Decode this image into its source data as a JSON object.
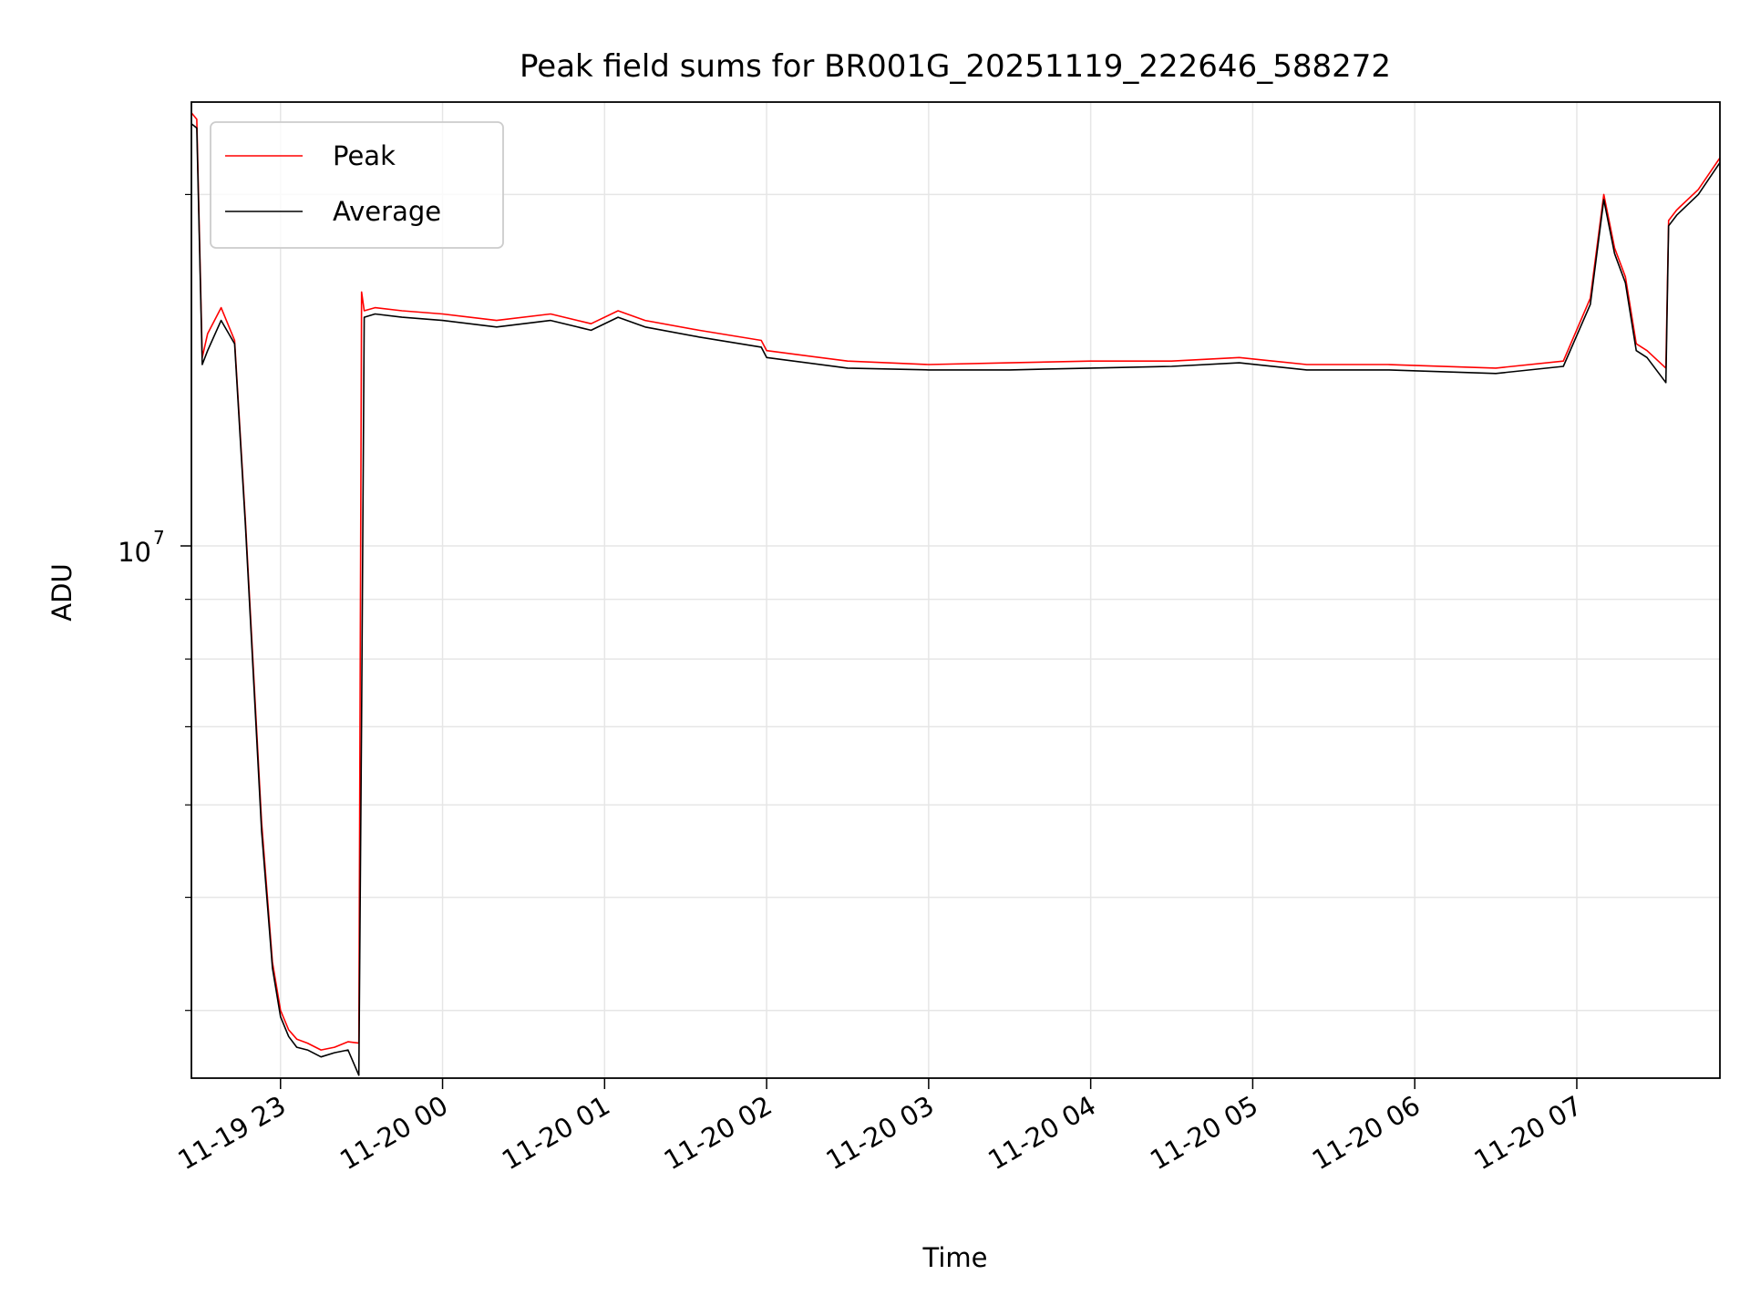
{
  "chart_data": {
    "type": "line",
    "title": "Peak field sums for BR001G_20251119_222646_588272",
    "xlabel": "Time",
    "ylabel": "ADU",
    "y_scale": "log",
    "ylim": [
      3500000,
      24000000
    ],
    "xlim": [
      "2025-11-19 22:27",
      "2025-11-20 07:53"
    ],
    "grid": true,
    "legend": "upper-left",
    "x_ticks": [
      {
        "t": "2025-11-19 23:00",
        "label": "11-19 23"
      },
      {
        "t": "2025-11-20 00:00",
        "label": "11-20 00"
      },
      {
        "t": "2025-11-20 01:00",
        "label": "11-20 01"
      },
      {
        "t": "2025-11-20 02:00",
        "label": "11-20 02"
      },
      {
        "t": "2025-11-20 03:00",
        "label": "11-20 03"
      },
      {
        "t": "2025-11-20 04:00",
        "label": "11-20 04"
      },
      {
        "t": "2025-11-20 05:00",
        "label": "11-20 05"
      },
      {
        "t": "2025-11-20 06:00",
        "label": "11-20 06"
      },
      {
        "t": "2025-11-20 07:00",
        "label": "11-20 07"
      }
    ],
    "y_major_ticks": [
      {
        "v": 10000000,
        "label_base": "10",
        "label_exp": "7"
      }
    ],
    "y_minor_ticks": [
      4000000,
      5000000,
      6000000,
      7000000,
      8000000,
      9000000,
      20000000
    ],
    "series": [
      {
        "name": "Peak",
        "color": "#ff0000",
        "x": [
          "2025-11-19 22:27",
          "2025-11-19 22:29",
          "2025-11-19 22:31",
          "2025-11-19 22:33",
          "2025-11-19 22:38",
          "2025-11-19 22:43",
          "2025-11-19 22:47",
          "2025-11-19 22:53",
          "2025-11-19 22:57",
          "2025-11-19 23:00",
          "2025-11-19 23:03",
          "2025-11-19 23:06",
          "2025-11-19 23:10",
          "2025-11-19 23:15",
          "2025-11-19 23:20",
          "2025-11-19 23:25",
          "2025-11-19 23:29",
          "2025-11-19 23:30",
          "2025-11-19 23:31",
          "2025-11-19 23:35",
          "2025-11-19 23:45",
          "2025-11-20 00:00",
          "2025-11-20 00:20",
          "2025-11-20 00:40",
          "2025-11-20 00:55",
          "2025-11-20 01:05",
          "2025-11-20 01:15",
          "2025-11-20 01:35",
          "2025-11-20 01:58",
          "2025-11-20 02:00",
          "2025-11-20 02:30",
          "2025-11-20 03:00",
          "2025-11-20 03:30",
          "2025-11-20 04:00",
          "2025-11-20 04:30",
          "2025-11-20 04:55",
          "2025-11-20 05:20",
          "2025-11-20 05:50",
          "2025-11-20 06:30",
          "2025-11-20 06:55",
          "2025-11-20 07:05",
          "2025-11-20 07:10",
          "2025-11-20 07:14",
          "2025-11-20 07:18",
          "2025-11-20 07:22",
          "2025-11-20 07:26",
          "2025-11-20 07:33",
          "2025-11-20 07:34",
          "2025-11-20 07:37",
          "2025-11-20 07:38",
          "2025-11-20 07:45",
          "2025-11-20 07:53"
        ],
        "values": [
          23500000,
          23200000,
          14500000,
          15200000,
          16000000,
          15000000,
          10500000,
          5800000,
          4400000,
          4000000,
          3850000,
          3780000,
          3750000,
          3700000,
          3720000,
          3760000,
          3750000,
          16500000,
          15900000,
          16000000,
          15900000,
          15800000,
          15600000,
          15800000,
          15500000,
          15900000,
          15600000,
          15300000,
          15000000,
          14700000,
          14400000,
          14300000,
          14350000,
          14400000,
          14400000,
          14500000,
          14300000,
          14300000,
          14200000,
          14400000,
          16300000,
          20000000,
          18000000,
          17000000,
          14900000,
          14700000,
          14200000,
          19000000,
          19400000,
          19500000,
          20200000,
          21500000
        ]
      },
      {
        "name": "Average",
        "color": "#000000",
        "x": [
          "2025-11-19 22:27",
          "2025-11-19 22:29",
          "2025-11-19 22:31",
          "2025-11-19 22:33",
          "2025-11-19 22:38",
          "2025-11-19 22:43",
          "2025-11-19 22:47",
          "2025-11-19 22:53",
          "2025-11-19 22:57",
          "2025-11-19 23:00",
          "2025-11-19 23:03",
          "2025-11-19 23:06",
          "2025-11-19 23:10",
          "2025-11-19 23:15",
          "2025-11-19 23:20",
          "2025-11-19 23:25",
          "2025-11-19 23:29",
          "2025-11-19 23:30",
          "2025-11-19 23:31",
          "2025-11-19 23:35",
          "2025-11-19 23:45",
          "2025-11-20 00:00",
          "2025-11-20 00:20",
          "2025-11-20 00:40",
          "2025-11-20 00:55",
          "2025-11-20 01:05",
          "2025-11-20 01:15",
          "2025-11-20 01:35",
          "2025-11-20 01:58",
          "2025-11-20 02:00",
          "2025-11-20 02:30",
          "2025-11-20 03:00",
          "2025-11-20 03:30",
          "2025-11-20 04:00",
          "2025-11-20 04:30",
          "2025-11-20 04:55",
          "2025-11-20 05:20",
          "2025-11-20 05:50",
          "2025-11-20 06:30",
          "2025-11-20 06:55",
          "2025-11-20 07:05",
          "2025-11-20 07:10",
          "2025-11-20 07:14",
          "2025-11-20 07:18",
          "2025-11-20 07:22",
          "2025-11-20 07:26",
          "2025-11-20 07:33",
          "2025-11-20 07:34",
          "2025-11-20 07:37",
          "2025-11-20 07:38",
          "2025-11-20 07:45",
          "2025-11-20 07:53"
        ],
        "values": [
          23000000,
          22800000,
          14300000,
          14700000,
          15600000,
          14900000,
          10400000,
          5700000,
          4350000,
          3950000,
          3800000,
          3720000,
          3700000,
          3650000,
          3680000,
          3700000,
          3520000,
          7100000,
          15700000,
          15800000,
          15700000,
          15600000,
          15400000,
          15600000,
          15300000,
          15700000,
          15400000,
          15100000,
          14800000,
          14500000,
          14200000,
          14150000,
          14150000,
          14200000,
          14250000,
          14350000,
          14150000,
          14150000,
          14050000,
          14250000,
          16100000,
          19800000,
          17800000,
          16800000,
          14700000,
          14500000,
          13800000,
          18800000,
          19200000,
          19300000,
          20000000,
          21300000
        ]
      }
    ]
  }
}
